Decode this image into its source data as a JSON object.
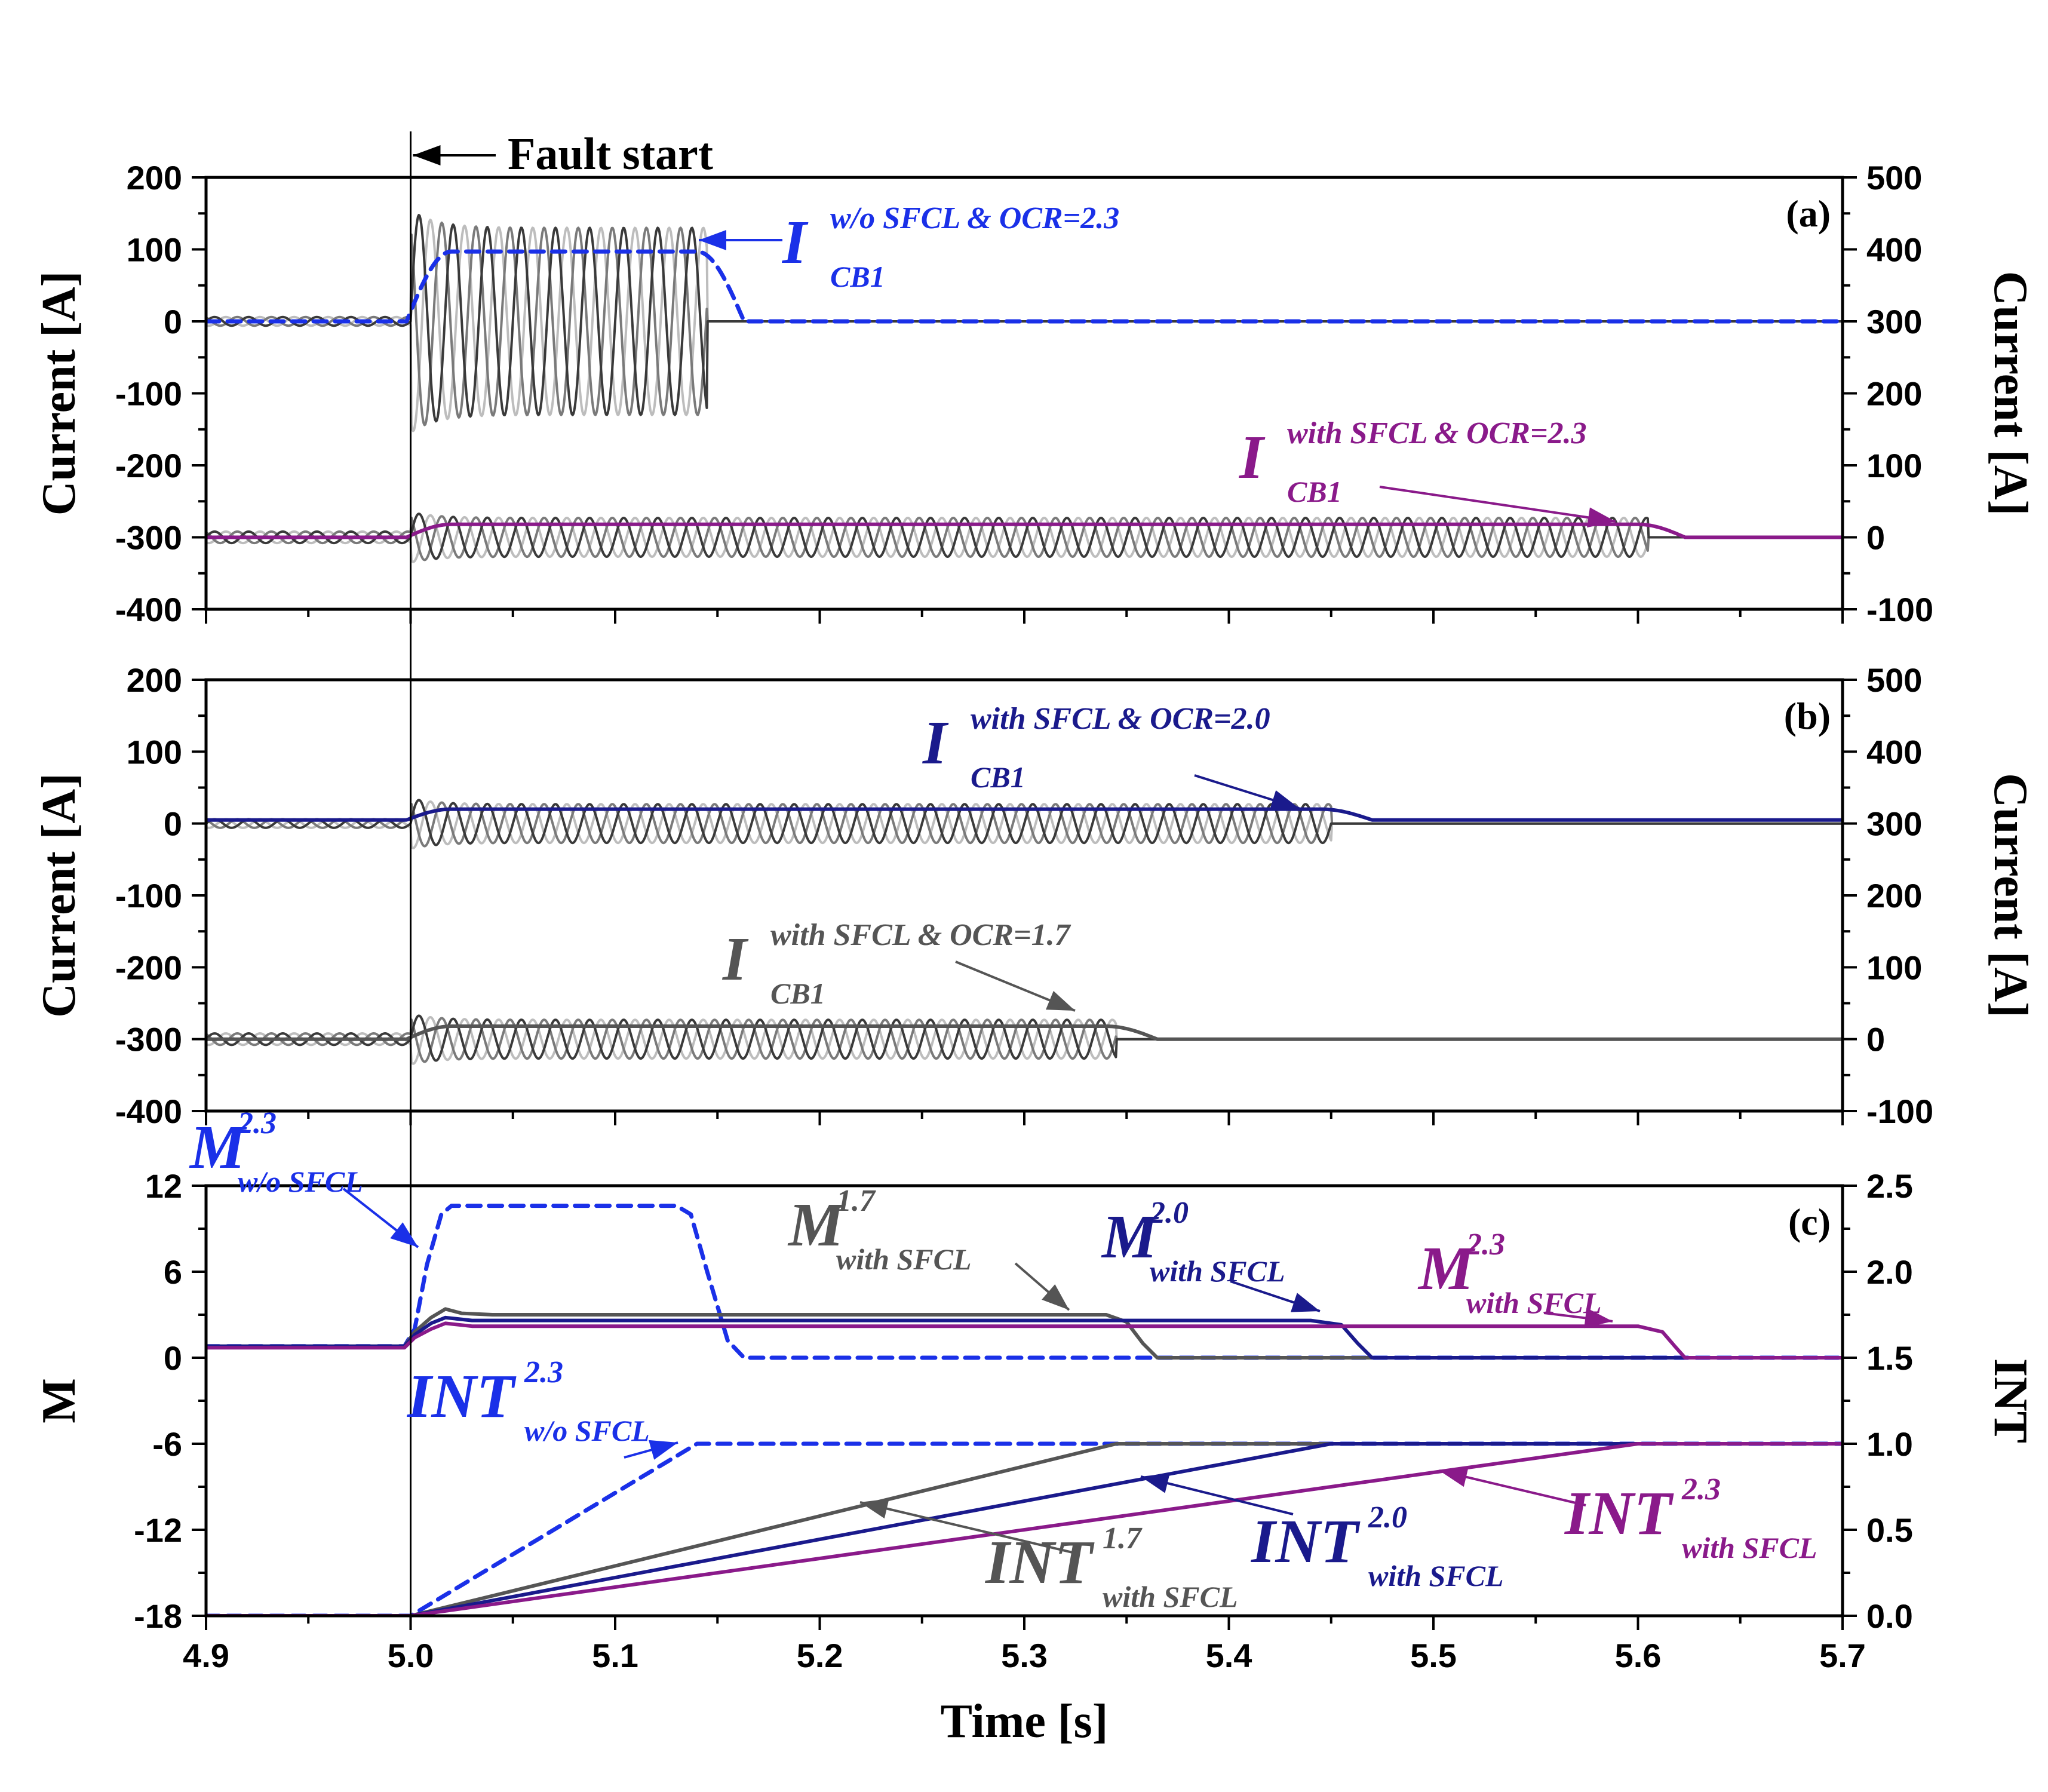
{
  "chart_data": {
    "type": "line",
    "x_axis": {
      "label": "Time [s]",
      "range": [
        4.9,
        5.7
      ],
      "ticks": [
        "4.9",
        "5.0",
        "5.1",
        "5.2",
        "5.3",
        "5.4",
        "5.5",
        "5.6",
        "5.7"
      ]
    },
    "fault_marker": {
      "x": 5.0,
      "label": "Fault start"
    },
    "colors": {
      "wo_sfcl": "#1a30e8",
      "ocr_2_3": "#8a1a8a",
      "ocr_2_0": "#1a1a8c",
      "ocr_1_7": "#555555",
      "phase_dark": "#3a3a3a",
      "phase_mid": "#7a7a7a",
      "phase_light": "#bdbdbd"
    },
    "panels": [
      {
        "id": "a",
        "label": "(a)",
        "left_axis": {
          "label": "Current [A]",
          "range": [
            -400,
            200
          ],
          "ticks": [
            "200",
            "100",
            "0",
            "-100",
            "-200",
            "-300",
            "-400"
          ]
        },
        "right_axis": {
          "label": "Current [A]",
          "range": [
            -100,
            500
          ],
          "ticks": [
            "500",
            "400",
            "300",
            "200",
            "100",
            "0",
            "-100"
          ]
        },
        "series": [
          {
            "kind": "three_phase",
            "offset": 0,
            "pre_amp": 6,
            "fault_amp": 130,
            "peak_amp": 155,
            "clear_time": 5.145
          },
          {
            "kind": "trip_signal",
            "name_main": "I",
            "name_sup": "w/o SFCL & OCR=2.3",
            "name_sub": "CB1",
            "color_key": "wo_sfcl",
            "dashed": true,
            "base": 300,
            "high": 397,
            "rise_end": 5.02,
            "fall_start": 5.14,
            "fall_end": 5.163
          },
          {
            "kind": "three_phase",
            "offset": -300,
            "pre_amp": 8,
            "fault_amp": 27,
            "peak_amp": 35,
            "clear_time": 5.605
          },
          {
            "kind": "trip_signal",
            "name_main": "I",
            "name_sup": "with SFCL & OCR=2.3",
            "name_sub": "CB1",
            "color_key": "ocr_2_3",
            "dashed": false,
            "base": 0,
            "high": 18,
            "rise_end": 5.02,
            "fall_start": 5.6,
            "fall_end": 5.623
          }
        ]
      },
      {
        "id": "b",
        "label": "(b)",
        "left_axis": {
          "label": "Current [A]",
          "range": [
            -400,
            200
          ],
          "ticks": [
            "200",
            "100",
            "0",
            "-100",
            "-200",
            "-300",
            "-400"
          ]
        },
        "right_axis": {
          "label": "Current [A]",
          "range": [
            -100,
            500
          ],
          "ticks": [
            "500",
            "400",
            "300",
            "200",
            "100",
            "0",
            "-100"
          ]
        },
        "series": [
          {
            "kind": "three_phase",
            "offset": 0,
            "pre_amp": 6,
            "fault_amp": 27,
            "peak_amp": 35,
            "clear_time": 5.45
          },
          {
            "kind": "trip_signal",
            "name_main": "I",
            "name_sup": "with SFCL & OCR=2.0",
            "name_sub": "CB1",
            "color_key": "ocr_2_0",
            "dashed": false,
            "base": 305,
            "high": 320,
            "rise_end": 5.02,
            "fall_start": 5.445,
            "fall_end": 5.47
          },
          {
            "kind": "three_phase",
            "offset": -300,
            "pre_amp": 8,
            "fault_amp": 27,
            "peak_amp": 35,
            "clear_time": 5.345
          },
          {
            "kind": "trip_signal",
            "name_main": "I",
            "name_sup": "with SFCL & OCR=1.7",
            "name_sub": "CB1",
            "color_key": "ocr_1_7",
            "dashed": false,
            "base": 0,
            "high": 18,
            "rise_end": 5.02,
            "fall_start": 5.34,
            "fall_end": 5.365
          }
        ]
      },
      {
        "id": "c",
        "label": "(c)",
        "left_axis": {
          "label": "M",
          "range": [
            -18,
            12
          ],
          "ticks": [
            "12",
            "6",
            "0",
            "-6",
            "-12",
            "-18"
          ]
        },
        "right_axis": {
          "label": "INT",
          "range": [
            0.0,
            2.5
          ],
          "ticks": [
            "2.5",
            "2.0",
            "1.5",
            "1.0",
            "0.5",
            "0.0"
          ]
        },
        "series": [
          {
            "kind": "M",
            "name_main": "M",
            "name_sup": "2.3",
            "name_sub": "w/o SFCL",
            "color_key": "wo_sfcl",
            "dashed": true,
            "points": [
              [
                4.9,
                0.8
              ],
              [
                4.997,
                0.8
              ],
              [
                5.002,
                2.0
              ],
              [
                5.008,
                6.5
              ],
              [
                5.015,
                10.0
              ],
              [
                5.02,
                10.6
              ],
              [
                5.03,
                10.6
              ],
              [
                5.13,
                10.6
              ],
              [
                5.137,
                10.0
              ],
              [
                5.145,
                6.0
              ],
              [
                5.155,
                1.2
              ],
              [
                5.163,
                0.0
              ],
              [
                5.7,
                0.0
              ]
            ]
          },
          {
            "kind": "M",
            "name_main": "M",
            "name_sup": "1.7",
            "name_sub": "with SFCL",
            "color_key": "ocr_1_7",
            "dashed": false,
            "points": [
              [
                4.9,
                0.8
              ],
              [
                4.997,
                0.8
              ],
              [
                5.002,
                1.8
              ],
              [
                5.01,
                2.8
              ],
              [
                5.017,
                3.4
              ],
              [
                5.025,
                3.1
              ],
              [
                5.04,
                3.0
              ],
              [
                5.34,
                3.0
              ],
              [
                5.35,
                2.5
              ],
              [
                5.358,
                1.0
              ],
              [
                5.365,
                0.0
              ],
              [
                5.7,
                0.0
              ]
            ]
          },
          {
            "kind": "M",
            "name_main": "M",
            "name_sup": "2.0",
            "name_sub": "with SFCL",
            "color_key": "ocr_2_0",
            "dashed": false,
            "points": [
              [
                4.9,
                0.8
              ],
              [
                4.997,
                0.8
              ],
              [
                5.002,
                1.6
              ],
              [
                5.01,
                2.4
              ],
              [
                5.017,
                2.8
              ],
              [
                5.03,
                2.6
              ],
              [
                5.44,
                2.6
              ],
              [
                5.455,
                2.3
              ],
              [
                5.463,
                1.0
              ],
              [
                5.47,
                0.0
              ],
              [
                5.7,
                0.0
              ]
            ]
          },
          {
            "kind": "M",
            "name_main": "M",
            "name_sup": "2.3",
            "name_sub": "with SFCL",
            "color_key": "ocr_2_3",
            "dashed": false,
            "points": [
              [
                4.9,
                0.7
              ],
              [
                4.997,
                0.7
              ],
              [
                5.002,
                1.4
              ],
              [
                5.01,
                2.0
              ],
              [
                5.017,
                2.4
              ],
              [
                5.03,
                2.2
              ],
              [
                5.6,
                2.2
              ],
              [
                5.612,
                1.8
              ],
              [
                5.618,
                0.8
              ],
              [
                5.623,
                0.0
              ],
              [
                5.7,
                0.0
              ]
            ]
          },
          {
            "kind": "INT",
            "name_main": "INT",
            "name_sup": "2.3",
            "name_sub": "w/o SFCL",
            "color_key": "wo_sfcl",
            "dashed": true,
            "points": [
              [
                4.9,
                0.0
              ],
              [
                5.0,
                0.0
              ],
              [
                5.14,
                1.0
              ],
              [
                5.7,
                1.0
              ]
            ]
          },
          {
            "kind": "INT",
            "name_main": "INT",
            "name_sup": "1.7",
            "name_sub": "with SFCL",
            "color_key": "ocr_1_7",
            "dashed": false,
            "points": [
              [
                4.9,
                0.0
              ],
              [
                5.0,
                0.0
              ],
              [
                5.345,
                1.0
              ],
              [
                5.7,
                1.0
              ]
            ]
          },
          {
            "kind": "INT",
            "name_main": "INT",
            "name_sup": "2.0",
            "name_sub": "with SFCL",
            "color_key": "ocr_2_0",
            "dashed": false,
            "points": [
              [
                4.9,
                0.0
              ],
              [
                5.0,
                0.0
              ],
              [
                5.45,
                1.0
              ],
              [
                5.7,
                1.0
              ]
            ]
          },
          {
            "kind": "INT",
            "name_main": "INT",
            "name_sup": "2.3",
            "name_sub": "with SFCL",
            "color_key": "ocr_2_3",
            "dashed": false,
            "points": [
              [
                4.9,
                0.0
              ],
              [
                5.0,
                0.0
              ],
              [
                5.6,
                1.0
              ],
              [
                5.7,
                1.0
              ]
            ]
          }
        ]
      }
    ]
  }
}
